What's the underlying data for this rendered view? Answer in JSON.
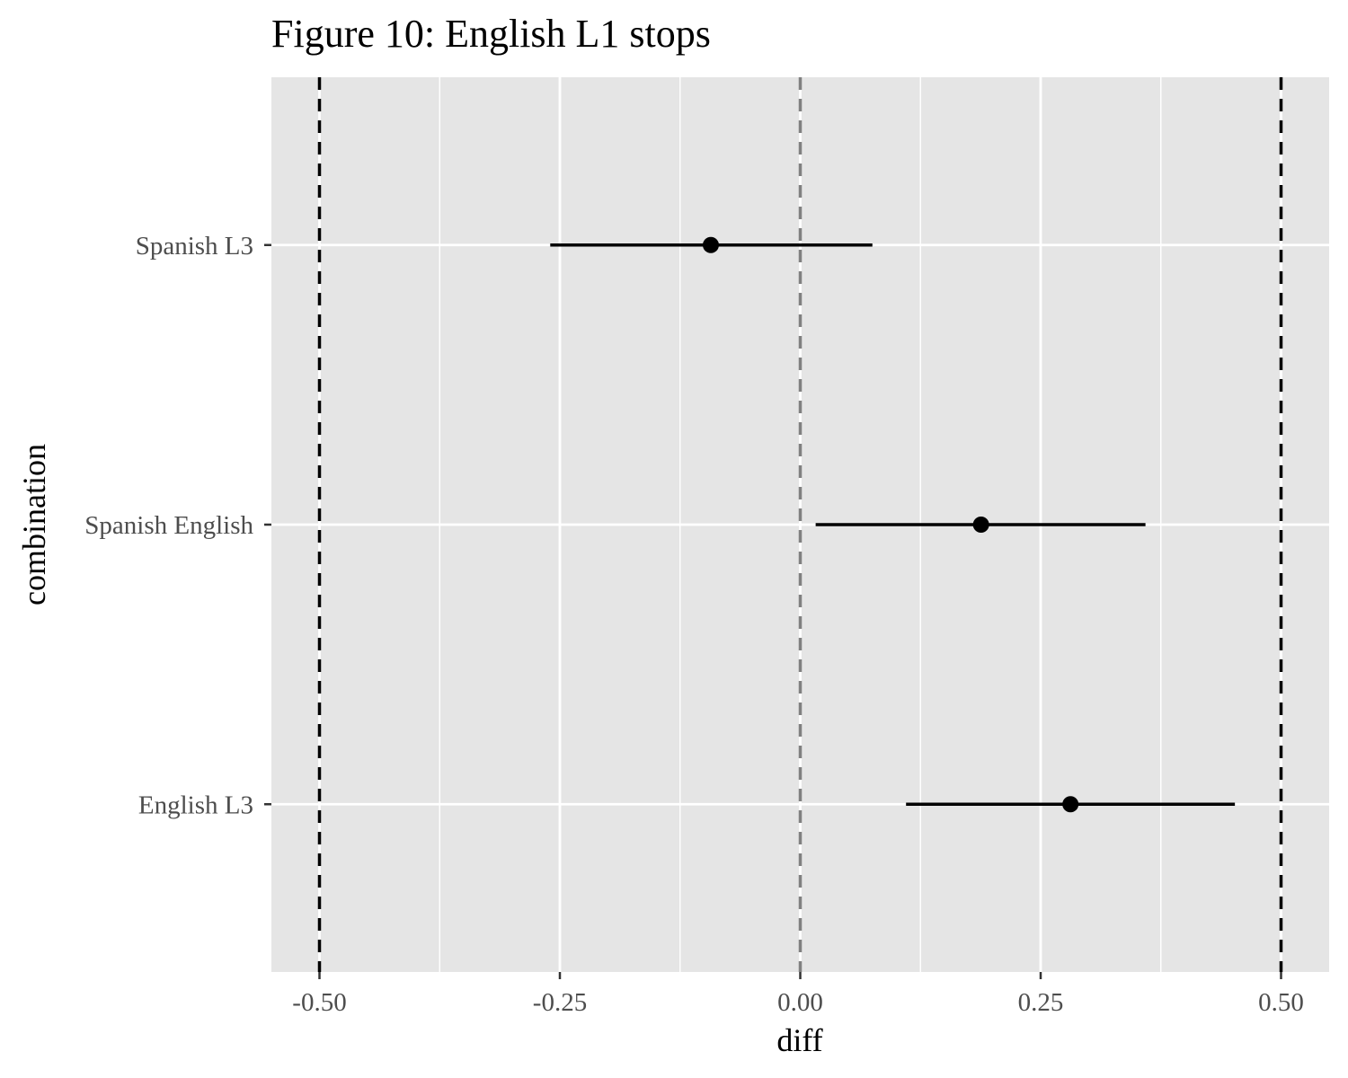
{
  "chart_data": {
    "type": "pointrange",
    "title": "Figure 10: English L1 stops",
    "xlabel": "diff",
    "ylabel": "combination",
    "xlim": [
      -0.55,
      0.55
    ],
    "x_ticks": [
      -0.5,
      -0.25,
      0.0,
      0.25,
      0.5
    ],
    "x_tick_labels": [
      "-0.50",
      "-0.25",
      "0.00",
      "0.25",
      "0.50"
    ],
    "categories": [
      "Spanish L3",
      "Spanish English",
      "English L3"
    ],
    "points": [
      {
        "category": "Spanish L3",
        "estimate": -0.093,
        "lower": -0.26,
        "upper": 0.075
      },
      {
        "category": "Spanish English",
        "estimate": 0.188,
        "lower": 0.016,
        "upper": 0.359
      },
      {
        "category": "English L3",
        "estimate": 0.281,
        "lower": 0.11,
        "upper": 0.452
      }
    ],
    "reference_lines": [
      {
        "x": -0.5,
        "style": "dashed",
        "color": "#000000"
      },
      {
        "x": 0.0,
        "style": "dashed",
        "color": "#808080"
      },
      {
        "x": 0.5,
        "style": "dashed",
        "color": "#000000"
      }
    ],
    "grid": true,
    "legend": "none",
    "colors": {
      "panel": "#e5e5e5",
      "grid": "#ffffff",
      "marks": "#000000",
      "tick_text": "#4d4d4d"
    }
  }
}
